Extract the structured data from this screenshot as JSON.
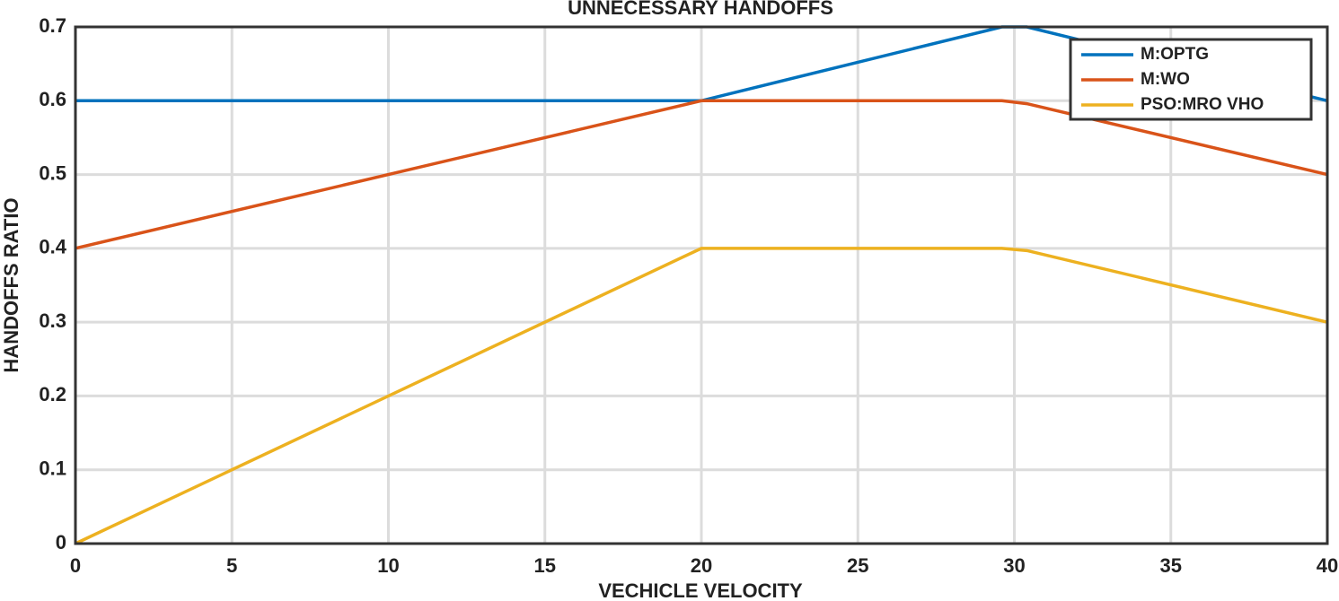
{
  "chart_data": {
    "type": "line",
    "title": "UNNECESSARY HANDOFFS",
    "x_label": "VECHICLE VELOCITY",
    "y_label": "HANDOFFS RATIO",
    "x": [
      0,
      20,
      29.6,
      30.4,
      40
    ],
    "series": [
      {
        "name": "M:OPTG",
        "color": "#0072bd",
        "values": [
          0.6,
          0.6,
          0.7,
          0.7,
          0.6
        ]
      },
      {
        "name": "M:WO",
        "color": "#d95319",
        "values": [
          0.4,
          0.6,
          0.6,
          0.596,
          0.5
        ]
      },
      {
        "name": "PSO:MRO VHO",
        "color": "#edb120",
        "values": [
          0,
          0.4,
          0.4,
          0.397,
          0.3
        ]
      }
    ],
    "xlim": [
      0,
      40
    ],
    "xticks": [
      0,
      5,
      10,
      15,
      20,
      25,
      30,
      35,
      40
    ],
    "ylim": [
      0,
      0.7
    ],
    "yticks": [
      0,
      0.1,
      0.2,
      0.3,
      0.4,
      0.5,
      0.6,
      0.7
    ],
    "grid": true,
    "legend": "northeast"
  }
}
